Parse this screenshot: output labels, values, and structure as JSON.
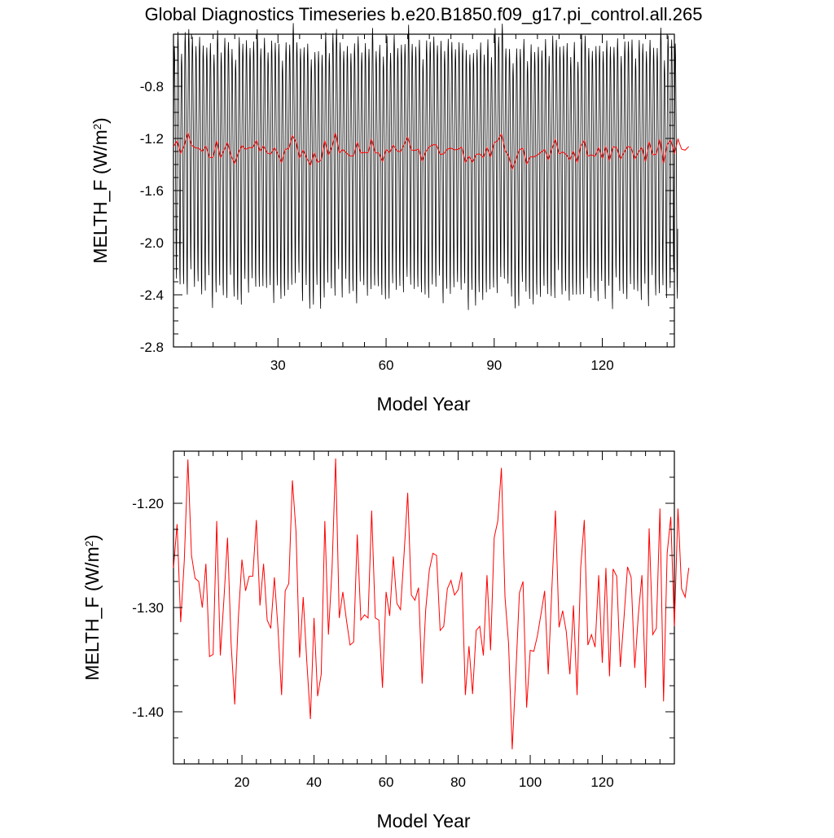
{
  "title": "Global Diagnostics Timeseries b.e20.B1850.f09_g17.pi_control.all.265",
  "chart_data": [
    {
      "type": "line",
      "xlabel": "Model Year",
      "ylabel_main": "MELTH_F (W/m",
      "ylabel_sup": "2",
      "ylabel_end": ")",
      "xlim": [
        1,
        140
      ],
      "ylim": [
        -2.8,
        -0.4
      ],
      "xticks": [
        30,
        60,
        90,
        120
      ],
      "xtick_labels": [
        "30",
        "60",
        "90",
        "120"
      ],
      "yticks": [
        -2.8,
        -2.4,
        -2.0,
        -1.6,
        -1.2,
        -0.8
      ],
      "ytick_labels": [
        "-2.8",
        "-2.4",
        "-2.0",
        "-1.6",
        "-1.2",
        "-0.8"
      ],
      "grid": false,
      "series": [
        {
          "style": "monthly",
          "color": "#000000",
          "x_start": 1,
          "x_step": 0.0833333,
          "seasonal_cycle": [
            -1.36,
            -1.0,
            -0.68,
            -0.6,
            -0.7,
            -0.95,
            -1.25,
            -1.62,
            -2.02,
            -2.4,
            -2.5,
            -1.98
          ],
          "seasonal_amplitude_by_year": [
            0.94,
            1.02,
            0.93,
            1.06,
            0.97,
            1.01,
            0.95,
            1.04,
            0.99,
            0.92,
            1.07,
            0.96,
            1.03,
            0.98,
            1.05,
            0.94,
            1.0,
            0.97,
            1.08,
            0.95,
            1.02,
            0.93,
            0.99,
            1.04,
            0.96,
            1.01,
            0.94,
            1.06,
            0.98,
            1.03,
            0.95,
            1.0,
            0.97,
            1.05,
            0.93,
            1.02,
            0.96,
            1.07,
            0.99,
            0.94,
            1.04,
            0.98,
            1.01,
            0.95,
            1.06,
            0.97,
            1.03,
            0.92,
            1.0,
            0.96,
            1.05,
            0.99,
            0.94,
            1.02,
            0.97,
            1.04,
            0.95,
            1.01,
            0.98,
            1.06,
            0.93,
            1.03,
            0.96,
            1.0,
            0.94,
            1.05,
            0.99,
            0.97,
            1.02,
            0.95,
            1.04,
            0.98,
            1.01,
            0.93,
            1.06,
            0.96,
            1.03,
            0.99,
            0.94,
            1.0,
            0.97,
            1.05,
            0.95,
            1.02,
            0.98,
            1.04,
            0.96,
            1.01,
            0.93,
            1.07,
            0.97,
            1.03,
            0.95,
            1.0,
            0.99,
            1.04,
            0.94,
            1.02,
            0.96,
            1.05,
            0.98,
            1.01,
            0.95,
            1.03,
            0.97,
            1.06,
            0.93,
            1.0,
            0.99,
            1.04,
            0.96,
            1.02,
            0.94,
            1.05,
            0.98,
            1.01,
            0.97,
            1.03,
            0.95,
            1.0,
            0.99,
            1.06,
            0.93,
            1.02,
            0.96,
            1.04,
            0.98,
            1.01,
            0.94,
            1.05,
            0.97,
            1.03,
            0.95,
            1.0,
            0.99,
            1.04,
            0.96,
            1.02,
            0.94,
            1.03
          ]
        },
        {
          "style": "annual",
          "color": "#ff0000",
          "x_start": 1,
          "x_step": 1,
          "values_ref": "annual"
        }
      ]
    },
    {
      "type": "line",
      "xlabel": "Model Year",
      "ylabel_main": "MELTH_F (W/m",
      "ylabel_sup": "2",
      "ylabel_end": ")",
      "xlim": [
        1,
        140
      ],
      "ylim": [
        -1.45,
        -1.15
      ],
      "xticks": [
        20,
        40,
        60,
        80,
        100,
        120
      ],
      "xtick_labels": [
        "20",
        "40",
        "60",
        "80",
        "100",
        "120"
      ],
      "yticks": [
        -1.4,
        -1.3,
        -1.2
      ],
      "ytick_labels": [
        "-1.40",
        "-1.30",
        "-1.20"
      ],
      "grid": false,
      "series": [
        {
          "style": "annual",
          "color": "#ff0000",
          "x_start": 1,
          "x_step": 1,
          "values_ref": "annual"
        }
      ]
    }
  ],
  "annual": [
    -1.262,
    -1.22,
    -1.314,
    -1.255,
    -1.158,
    -1.25,
    -1.272,
    -1.275,
    -1.3,
    -1.258,
    -1.347,
    -1.345,
    -1.217,
    -1.346,
    -1.292,
    -1.233,
    -1.335,
    -1.393,
    -1.31,
    -1.254,
    -1.284,
    -1.27,
    -1.27,
    -1.216,
    -1.298,
    -1.258,
    -1.312,
    -1.32,
    -1.271,
    -1.32,
    -1.384,
    -1.284,
    -1.277,
    -1.178,
    -1.227,
    -1.348,
    -1.29,
    -1.352,
    -1.407,
    -1.31,
    -1.385,
    -1.364,
    -1.217,
    -1.326,
    -1.263,
    -1.157,
    -1.31,
    -1.285,
    -1.312,
    -1.336,
    -1.333,
    -1.23,
    -1.312,
    -1.307,
    -1.31,
    -1.207,
    -1.31,
    -1.312,
    -1.377,
    -1.285,
    -1.308,
    -1.251,
    -1.296,
    -1.302,
    -1.248,
    -1.19,
    -1.288,
    -1.293,
    -1.281,
    -1.373,
    -1.302,
    -1.264,
    -1.248,
    -1.25,
    -1.322,
    -1.318,
    -1.282,
    -1.274,
    -1.288,
    -1.283,
    -1.266,
    -1.384,
    -1.337,
    -1.383,
    -1.322,
    -1.318,
    -1.346,
    -1.269,
    -1.341,
    -1.233,
    -1.217,
    -1.166,
    -1.29,
    -1.335,
    -1.436,
    -1.364,
    -1.286,
    -1.275,
    -1.396,
    -1.341,
    -1.342,
    -1.327,
    -1.306,
    -1.284,
    -1.364,
    -1.282,
    -1.207,
    -1.319,
    -1.303,
    -1.323,
    -1.364,
    -1.298,
    -1.384,
    -1.262,
    -1.216,
    -1.336,
    -1.326,
    -1.338,
    -1.269,
    -1.353,
    -1.262,
    -1.366,
    -1.263,
    -1.27,
    -1.357,
    -1.311,
    -1.261,
    -1.271,
    -1.358,
    -1.307,
    -1.269,
    -1.377,
    -1.224,
    -1.326,
    -1.32,
    -1.205,
    -1.39,
    -1.248,
    -1.213,
    -1.318,
    -1.205,
    -1.282,
    -1.29,
    -1.262
  ]
}
